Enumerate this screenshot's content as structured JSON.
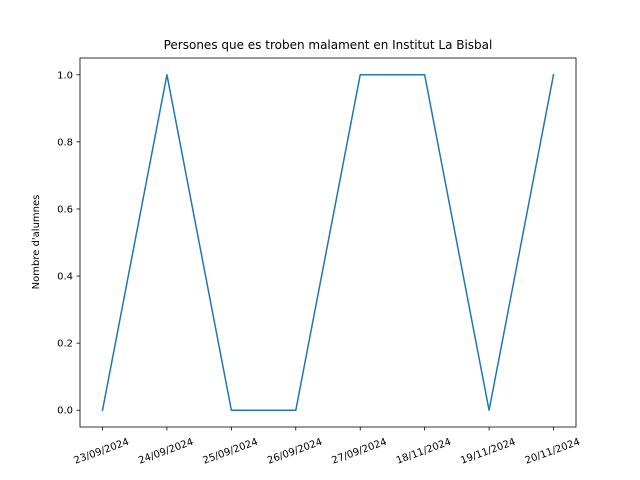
{
  "chart_data": {
    "type": "line",
    "title": "Persones que es troben malament en Institut La Bisbal",
    "xlabel": "",
    "ylabel": "Nombre d'alumnes",
    "categories": [
      "23/09/2024",
      "24/09/2024",
      "25/09/2024",
      "26/09/2024",
      "27/09/2024",
      "18/11/2024",
      "19/11/2024",
      "20/11/2024"
    ],
    "series": [
      {
        "values": [
          0,
          1,
          0,
          0,
          1,
          1,
          0,
          1
        ],
        "color": "#1f77b4"
      }
    ],
    "ylim": [
      -0.05,
      1.05
    ],
    "yticks": [
      "0.0",
      "0.2",
      "0.4",
      "0.6",
      "0.8",
      "1.0"
    ],
    "grid": false,
    "legend": "none"
  }
}
